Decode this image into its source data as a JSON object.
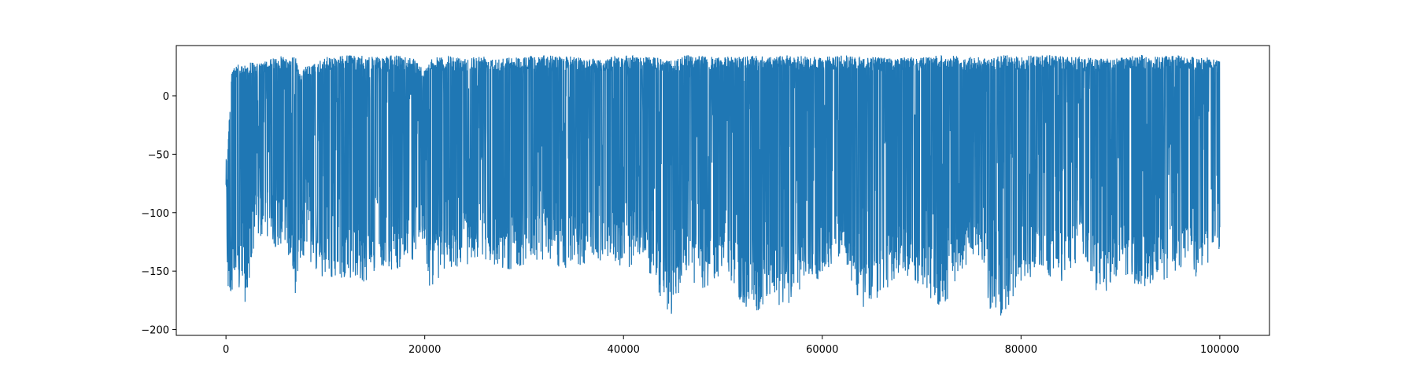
{
  "chart_data": {
    "type": "line",
    "title": "",
    "xlabel": "",
    "ylabel": "",
    "xlim": [
      -5000,
      105000
    ],
    "ylim": [
      -205,
      43
    ],
    "x_ticks": [
      0,
      20000,
      40000,
      60000,
      80000,
      100000
    ],
    "x_tick_labels": [
      "0",
      "20000",
      "40000",
      "60000",
      "80000",
      "100000"
    ],
    "y_ticks": [
      0,
      -50,
      -100,
      -150,
      -200
    ],
    "y_tick_labels": [
      "0",
      "−50",
      "−100",
      "−150",
      "−200"
    ],
    "grid": false,
    "legend": "none",
    "series": [
      {
        "color": "#1f77b4",
        "x_range": [
          0,
          100000
        ],
        "envelope": {
          "x": [
            0,
            200,
            500,
            800,
            1000,
            1500,
            2000,
            2500,
            3000,
            4000,
            5000,
            6000,
            7000,
            7500,
            8000,
            9000,
            10000,
            12000,
            14000,
            15500,
            17000,
            19000,
            20000,
            20500,
            22000,
            24000,
            26000,
            28000,
            30000,
            32000,
            34000,
            36000,
            38000,
            40000,
            42000,
            44000,
            45000,
            46000,
            48000,
            50000,
            52000,
            53500,
            55000,
            56000,
            58000,
            60000,
            62000,
            64000,
            66000,
            68000,
            70000,
            72000,
            74000,
            76000,
            77000,
            78000,
            80000,
            82000,
            84000,
            86000,
            88000,
            90000,
            92000,
            94000,
            96000,
            98000,
            100000
          ],
          "upper": [
            -70,
            -40,
            15,
            30,
            28,
            25,
            28,
            30,
            27,
            30,
            33,
            35,
            33,
            20,
            25,
            28,
            33,
            35,
            34,
            33,
            35,
            33,
            22,
            32,
            34,
            33,
            35,
            33,
            34,
            35,
            34,
            33,
            32,
            35,
            34,
            32,
            30,
            35,
            34,
            33,
            35,
            34,
            33,
            35,
            34,
            33,
            35,
            34,
            33,
            34,
            33,
            35,
            34,
            33,
            32,
            35,
            34,
            35,
            34,
            33,
            32,
            33,
            35,
            34,
            35,
            34,
            32
          ],
          "lower": [
            -90,
            -180,
            -170,
            -160,
            -178,
            -165,
            -180,
            -150,
            -125,
            -120,
            -130,
            -125,
            -172,
            -140,
            -135,
            -150,
            -160,
            -155,
            -160,
            -145,
            -150,
            -140,
            -130,
            -165,
            -150,
            -145,
            -140,
            -150,
            -145,
            -140,
            -150,
            -145,
            -140,
            -150,
            -140,
            -178,
            -193,
            -150,
            -170,
            -150,
            -180,
            -190,
            -170,
            -188,
            -165,
            -155,
            -135,
            -185,
            -170,
            -150,
            -165,
            -185,
            -150,
            -140,
            -190,
            -188,
            -165,
            -150,
            -160,
            -140,
            -175,
            -150,
            -165,
            -160,
            -150,
            -158,
            -130
          ],
          "centerline_gap_hint": -90
        }
      }
    ]
  }
}
